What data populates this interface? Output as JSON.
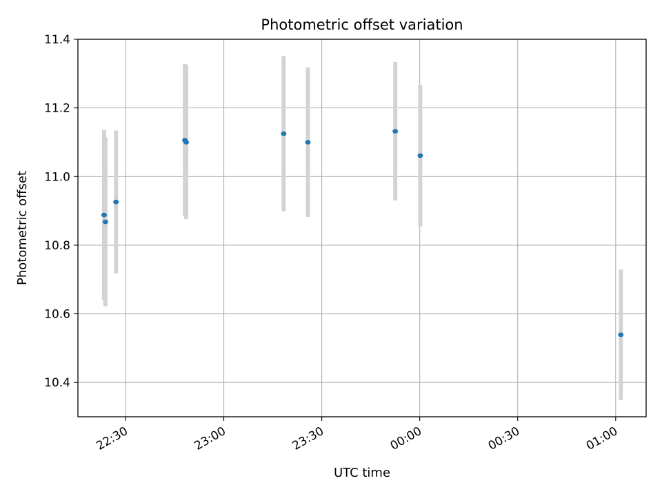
{
  "chart_data": {
    "type": "scatter",
    "title": "Photometric offset variation",
    "xlabel": "UTC time",
    "ylabel": "Photometric offset",
    "grid": true,
    "xlim": [
      "22:15:20",
      "01:09:20"
    ],
    "ylim": [
      10.3,
      11.4
    ],
    "xticks": [
      "22:30",
      "23:00",
      "23:30",
      "00:00",
      "00:30",
      "01:00"
    ],
    "xtick_times": [
      "22:30:00",
      "23:00:00",
      "23:30:00",
      "00:00:00",
      "00:30:00",
      "01:00:00"
    ],
    "yticks": [
      10.4,
      10.6,
      10.8,
      11.0,
      11.2,
      11.4
    ],
    "ytick_labels": [
      "10.4",
      "10.6",
      "10.8",
      "11.0",
      "11.2",
      "11.4"
    ],
    "series": [
      {
        "marker_color": "#1f77b4",
        "errorbar_color": "#d3d3d3",
        "points": [
          {
            "time": "22:23:20",
            "y": 10.888,
            "err": 0.248
          },
          {
            "time": "22:23:45",
            "y": 10.868,
            "err": 0.246
          },
          {
            "time": "22:27:00",
            "y": 10.926,
            "err": 0.208
          },
          {
            "time": "22:48:05",
            "y": 11.106,
            "err": 0.222
          },
          {
            "time": "22:48:30",
            "y": 11.1,
            "err": 0.224
          },
          {
            "time": "23:18:20",
            "y": 11.125,
            "err": 0.226
          },
          {
            "time": "23:25:45",
            "y": 11.1,
            "err": 0.218
          },
          {
            "time": "23:52:30",
            "y": 11.132,
            "err": 0.202
          },
          {
            "time": "00:00:10",
            "y": 11.061,
            "err": 0.206
          },
          {
            "time": "01:01:35",
            "y": 10.539,
            "err": 0.19
          }
        ]
      }
    ]
  }
}
